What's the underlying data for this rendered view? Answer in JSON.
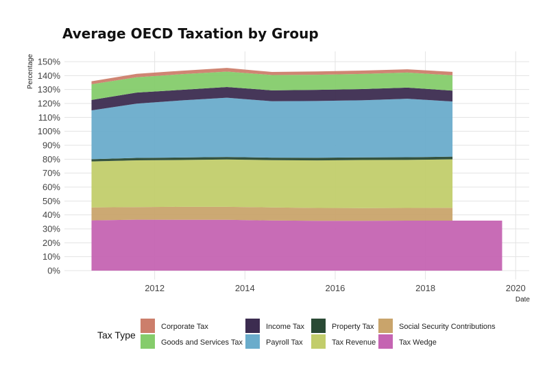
{
  "chart_data": {
    "type": "area",
    "title": "Average OECD Taxation by Group",
    "xlabel": "Date",
    "ylabel": "Percentage",
    "xlim": [
      2010.0,
      2020.3
    ],
    "ylim": [
      0,
      155
    ],
    "x_ticks": [
      2012,
      2014,
      2016,
      2018,
      2020
    ],
    "y_ticks": [
      0,
      10,
      20,
      30,
      40,
      50,
      60,
      70,
      80,
      90,
      100,
      110,
      120,
      130,
      140,
      150
    ],
    "y_tick_labels": [
      "0%",
      "10%",
      "20%",
      "30%",
      "40%",
      "50%",
      "60%",
      "70%",
      "80%",
      "90%",
      "100%",
      "110%",
      "120%",
      "130%",
      "140%",
      "150%"
    ],
    "grid": true,
    "stacked": true,
    "x": [
      2010.6,
      2011.6,
      2012.6,
      2013.6,
      2014.6,
      2015.6,
      2016.6,
      2017.6,
      2018.6
    ],
    "series": [
      {
        "name": "Tax Wedge",
        "color": "#c564b2",
        "values": [
          36.1,
          36.6,
          36.5,
          36.5,
          36.0,
          35.8,
          35.8,
          35.9,
          35.9
        ]
      },
      {
        "name": "Social Security Contributions",
        "color": "#c9a46b",
        "values": [
          9.3,
          9.0,
          9.3,
          9.3,
          9.4,
          9.2,
          9.1,
          9.1,
          9.2
        ]
      },
      {
        "name": "Tax Revenue",
        "color": "#c2cd6b",
        "values": [
          33.0,
          33.6,
          33.6,
          34.0,
          33.9,
          34.1,
          34.5,
          34.5,
          34.8
        ]
      },
      {
        "name": "Property Tax",
        "color": "#2a4a35",
        "values": [
          1.6,
          1.7,
          1.8,
          1.8,
          1.8,
          1.9,
          1.9,
          1.9,
          1.9
        ]
      },
      {
        "name": "Payroll Tax",
        "color": "#6aaccb",
        "values": [
          35.0,
          39.0,
          41.0,
          42.5,
          40.5,
          40.8,
          41.0,
          42.0,
          39.6
        ]
      },
      {
        "name": "Income Tax",
        "color": "#3c2c50",
        "values": [
          7.5,
          7.9,
          7.6,
          7.7,
          7.8,
          8.0,
          8.0,
          8.0,
          7.8
        ]
      },
      {
        "name": "Goods and Services Tax",
        "color": "#85cc6b",
        "values": [
          11.3,
          11.0,
          11.2,
          11.1,
          11.0,
          10.8,
          10.9,
          10.8,
          11.0
        ]
      },
      {
        "name": "Corporate Tax",
        "color": "#cc7e6b",
        "values": [
          2.1,
          2.5,
          2.5,
          2.6,
          2.2,
          2.4,
          2.4,
          2.3,
          2.5
        ]
      }
    ],
    "extension": {
      "series": "Tax Wedge",
      "x": [
        2018.6,
        2019.7
      ],
      "values": [
        35.9,
        35.9
      ]
    },
    "legend": {
      "title": "Tax Type",
      "position": "bottom",
      "columns": [
        [
          "Corporate Tax",
          "Goods and Services Tax"
        ],
        [
          "Income Tax",
          "Payroll Tax"
        ],
        [
          "Property Tax",
          "Tax Revenue"
        ],
        [
          "Social Security Contributions",
          "Tax Wedge"
        ]
      ]
    }
  }
}
